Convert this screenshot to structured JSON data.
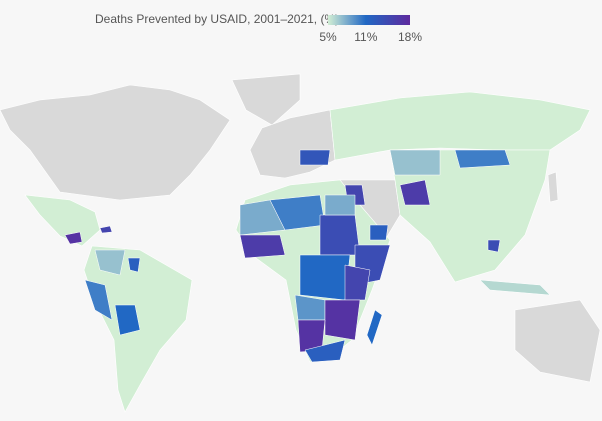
{
  "chart_data": {
    "type": "choropleth",
    "title": "Deaths Prevented by USAID, 2001–2021, (%)",
    "lim": [
      5,
      18
    ],
    "ticks": [
      {
        "value": 5,
        "label": "5%"
      },
      {
        "value": 11,
        "label": "11%"
      },
      {
        "value": 18,
        "label": "18%"
      }
    ],
    "colors": [
      "#d2eed4",
      "#2168c4",
      "#5e2a9e"
    ],
    "values": [
      17,
      15,
      7,
      12,
      10,
      11,
      10,
      16,
      15,
      13,
      8,
      10,
      14,
      8,
      16,
      14,
      11,
      15,
      9,
      17,
      17,
      12,
      11,
      12,
      14,
      7,
      6
    ]
  }
}
